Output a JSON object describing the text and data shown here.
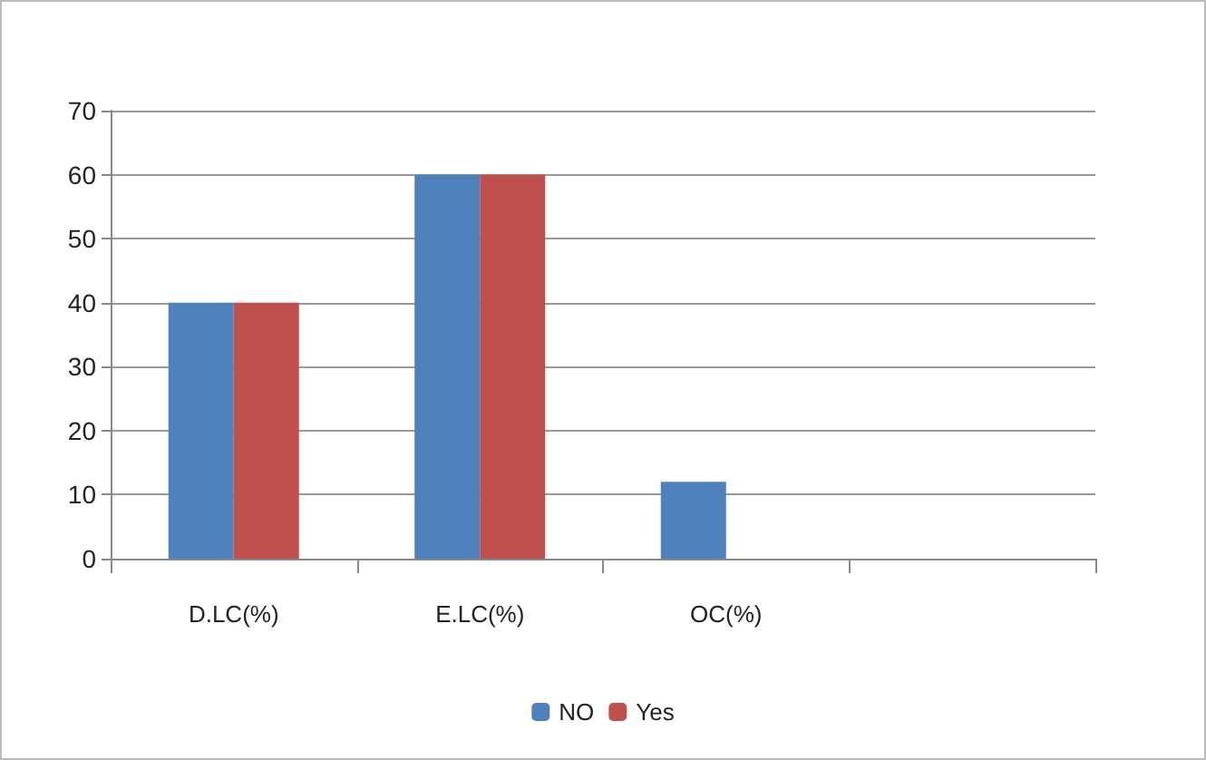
{
  "chart_data": {
    "type": "bar",
    "categories": [
      "D.LC(%)",
      "E.LC(%)",
      "OC(%)",
      null
    ],
    "series": [
      {
        "name": "NO",
        "color": "#4f81bd",
        "values": [
          40,
          60,
          12,
          null
        ]
      },
      {
        "name": "Yes",
        "color": "#c0504d",
        "values": [
          40,
          60,
          0,
          null
        ]
      }
    ],
    "ylim": [
      0,
      70
    ],
    "yticks": [
      0,
      10,
      20,
      30,
      40,
      50,
      60,
      70
    ],
    "grid": "y",
    "legend": "bottom"
  }
}
